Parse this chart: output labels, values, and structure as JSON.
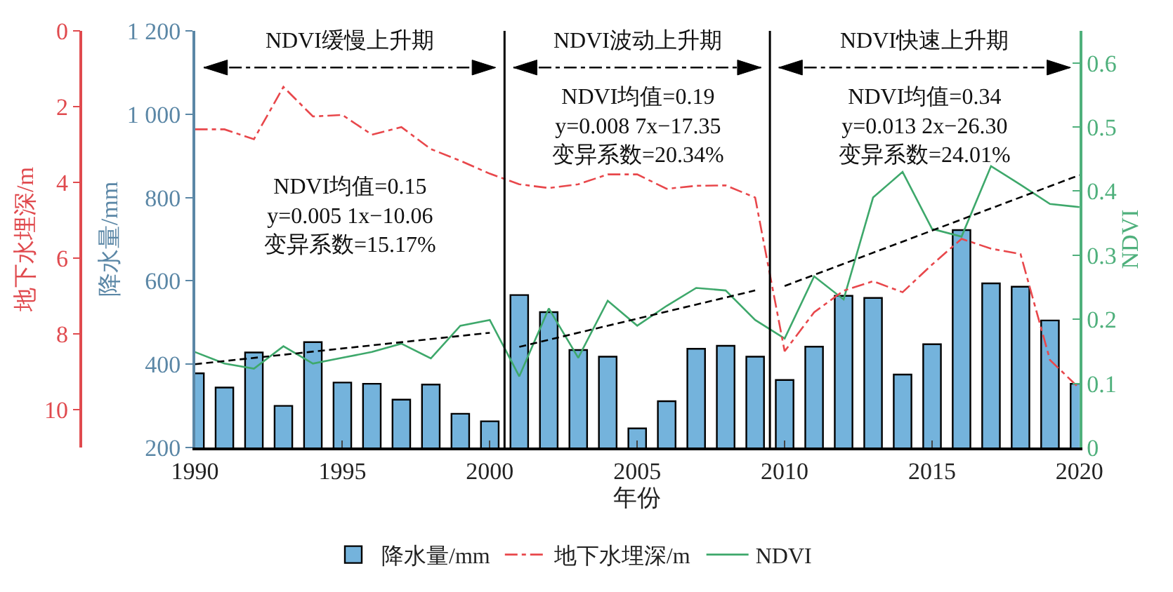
{
  "chart_data": {
    "type": "bar",
    "x": [
      1990,
      1991,
      1992,
      1993,
      1994,
      1995,
      1996,
      1997,
      1998,
      1999,
      2000,
      2001,
      2002,
      2003,
      2004,
      2005,
      2006,
      2007,
      2008,
      2009,
      2010,
      2011,
      2012,
      2013,
      2014,
      2015,
      2016,
      2017,
      2018,
      2019,
      2020
    ],
    "series": [
      {
        "name": "降水量/mm",
        "color": "#74b3dc",
        "axis": "y",
        "values": [
          378,
          344,
          428,
          300,
          453,
          356,
          353,
          315,
          351,
          281,
          263,
          566,
          525,
          434,
          418,
          246,
          311,
          437,
          444,
          418,
          362,
          442,
          564,
          559,
          375,
          448,
          722,
          594,
          586,
          505,
          353
        ]
      },
      {
        "name": "地下水埋深/m",
        "type": "line",
        "color": "#e8474b",
        "axis": "y3",
        "line_style": "dashdot",
        "values": [
          2.6,
          2.6,
          2.86,
          1.48,
          2.26,
          2.22,
          2.74,
          2.54,
          3.12,
          3.43,
          3.77,
          4.05,
          4.15,
          4.05,
          3.79,
          3.79,
          4.17,
          4.09,
          4.08,
          4.4,
          8.46,
          7.43,
          6.86,
          6.61,
          6.9,
          6.17,
          5.49,
          5.75,
          5.89,
          8.69,
          9.44
        ]
      },
      {
        "name": "NDVI",
        "type": "line",
        "color": "#3ea86b",
        "axis": "y2",
        "line_style": "solid",
        "values": [
          0.149,
          0.131,
          0.123,
          0.158,
          0.131,
          0.14,
          0.149,
          0.162,
          0.139,
          0.19,
          0.199,
          0.111,
          0.217,
          0.14,
          0.229,
          0.19,
          0.221,
          0.249,
          0.245,
          0.199,
          0.17,
          0.267,
          0.231,
          0.39,
          0.43,
          0.341,
          0.329,
          0.439,
          0.41,
          0.38,
          0.375
        ]
      },
      {
        "type": "line",
        "color": "#000000",
        "axis": "y2",
        "line_style": "dashed",
        "x": [
          1990,
          2000
        ],
        "values": [
          0.13,
          0.179
        ]
      },
      {
        "type": "line",
        "color": "#000000",
        "axis": "y2",
        "line_style": "dashed",
        "x": [
          2001,
          2009
        ],
        "values": [
          0.157,
          0.245
        ]
      },
      {
        "type": "line",
        "color": "#000000",
        "axis": "y2",
        "line_style": "dashed",
        "x": [
          2010,
          2020
        ],
        "values": [
          0.252,
          0.425
        ]
      }
    ],
    "xlabel": "年份",
    "ylabel": "降水量/mm",
    "y2label": "NDVI",
    "y3label": "地下水埋深/m",
    "xlim": [
      1990,
      2020
    ],
    "xticks": [
      1990,
      1995,
      2000,
      2005,
      2010,
      2015,
      2020
    ],
    "ylim": [
      200,
      1200
    ],
    "yticks": [
      200,
      400,
      600,
      800,
      {
        "value": 1000,
        "label": "1 000"
      },
      {
        "value": 1200,
        "label": "1 200"
      }
    ],
    "y2lim": [
      0,
      0.65
    ],
    "y2ticks": [
      0,
      0.1,
      0.2,
      0.3,
      0.4,
      0.5,
      0.6
    ],
    "y3lim": [
      11,
      0
    ],
    "y3ticks": [
      0,
      2,
      4,
      6,
      8,
      10
    ],
    "ref_lines": [
      {
        "axis": "x",
        "value": 2000.5,
        "color": "#000000"
      },
      {
        "axis": "x",
        "value": 2009.5,
        "color": "#000000"
      }
    ],
    "annotations": [
      "NDVI缓慢上升期",
      "NDVI波动上升期",
      "NDVI快速上升期",
      "NDVI均值=0.15\ny=0.005 1x−10.06\n变异系数=15.17%",
      "NDVI均值=0.19\ny=0.008 7x−17.35\n变异系数=20.34%",
      "NDVI均值=0.34\ny=0.013 2x−26.30\n变异系数=24.01%"
    ],
    "legend": "bottom",
    "grid": false,
    "marker": "none"
  }
}
